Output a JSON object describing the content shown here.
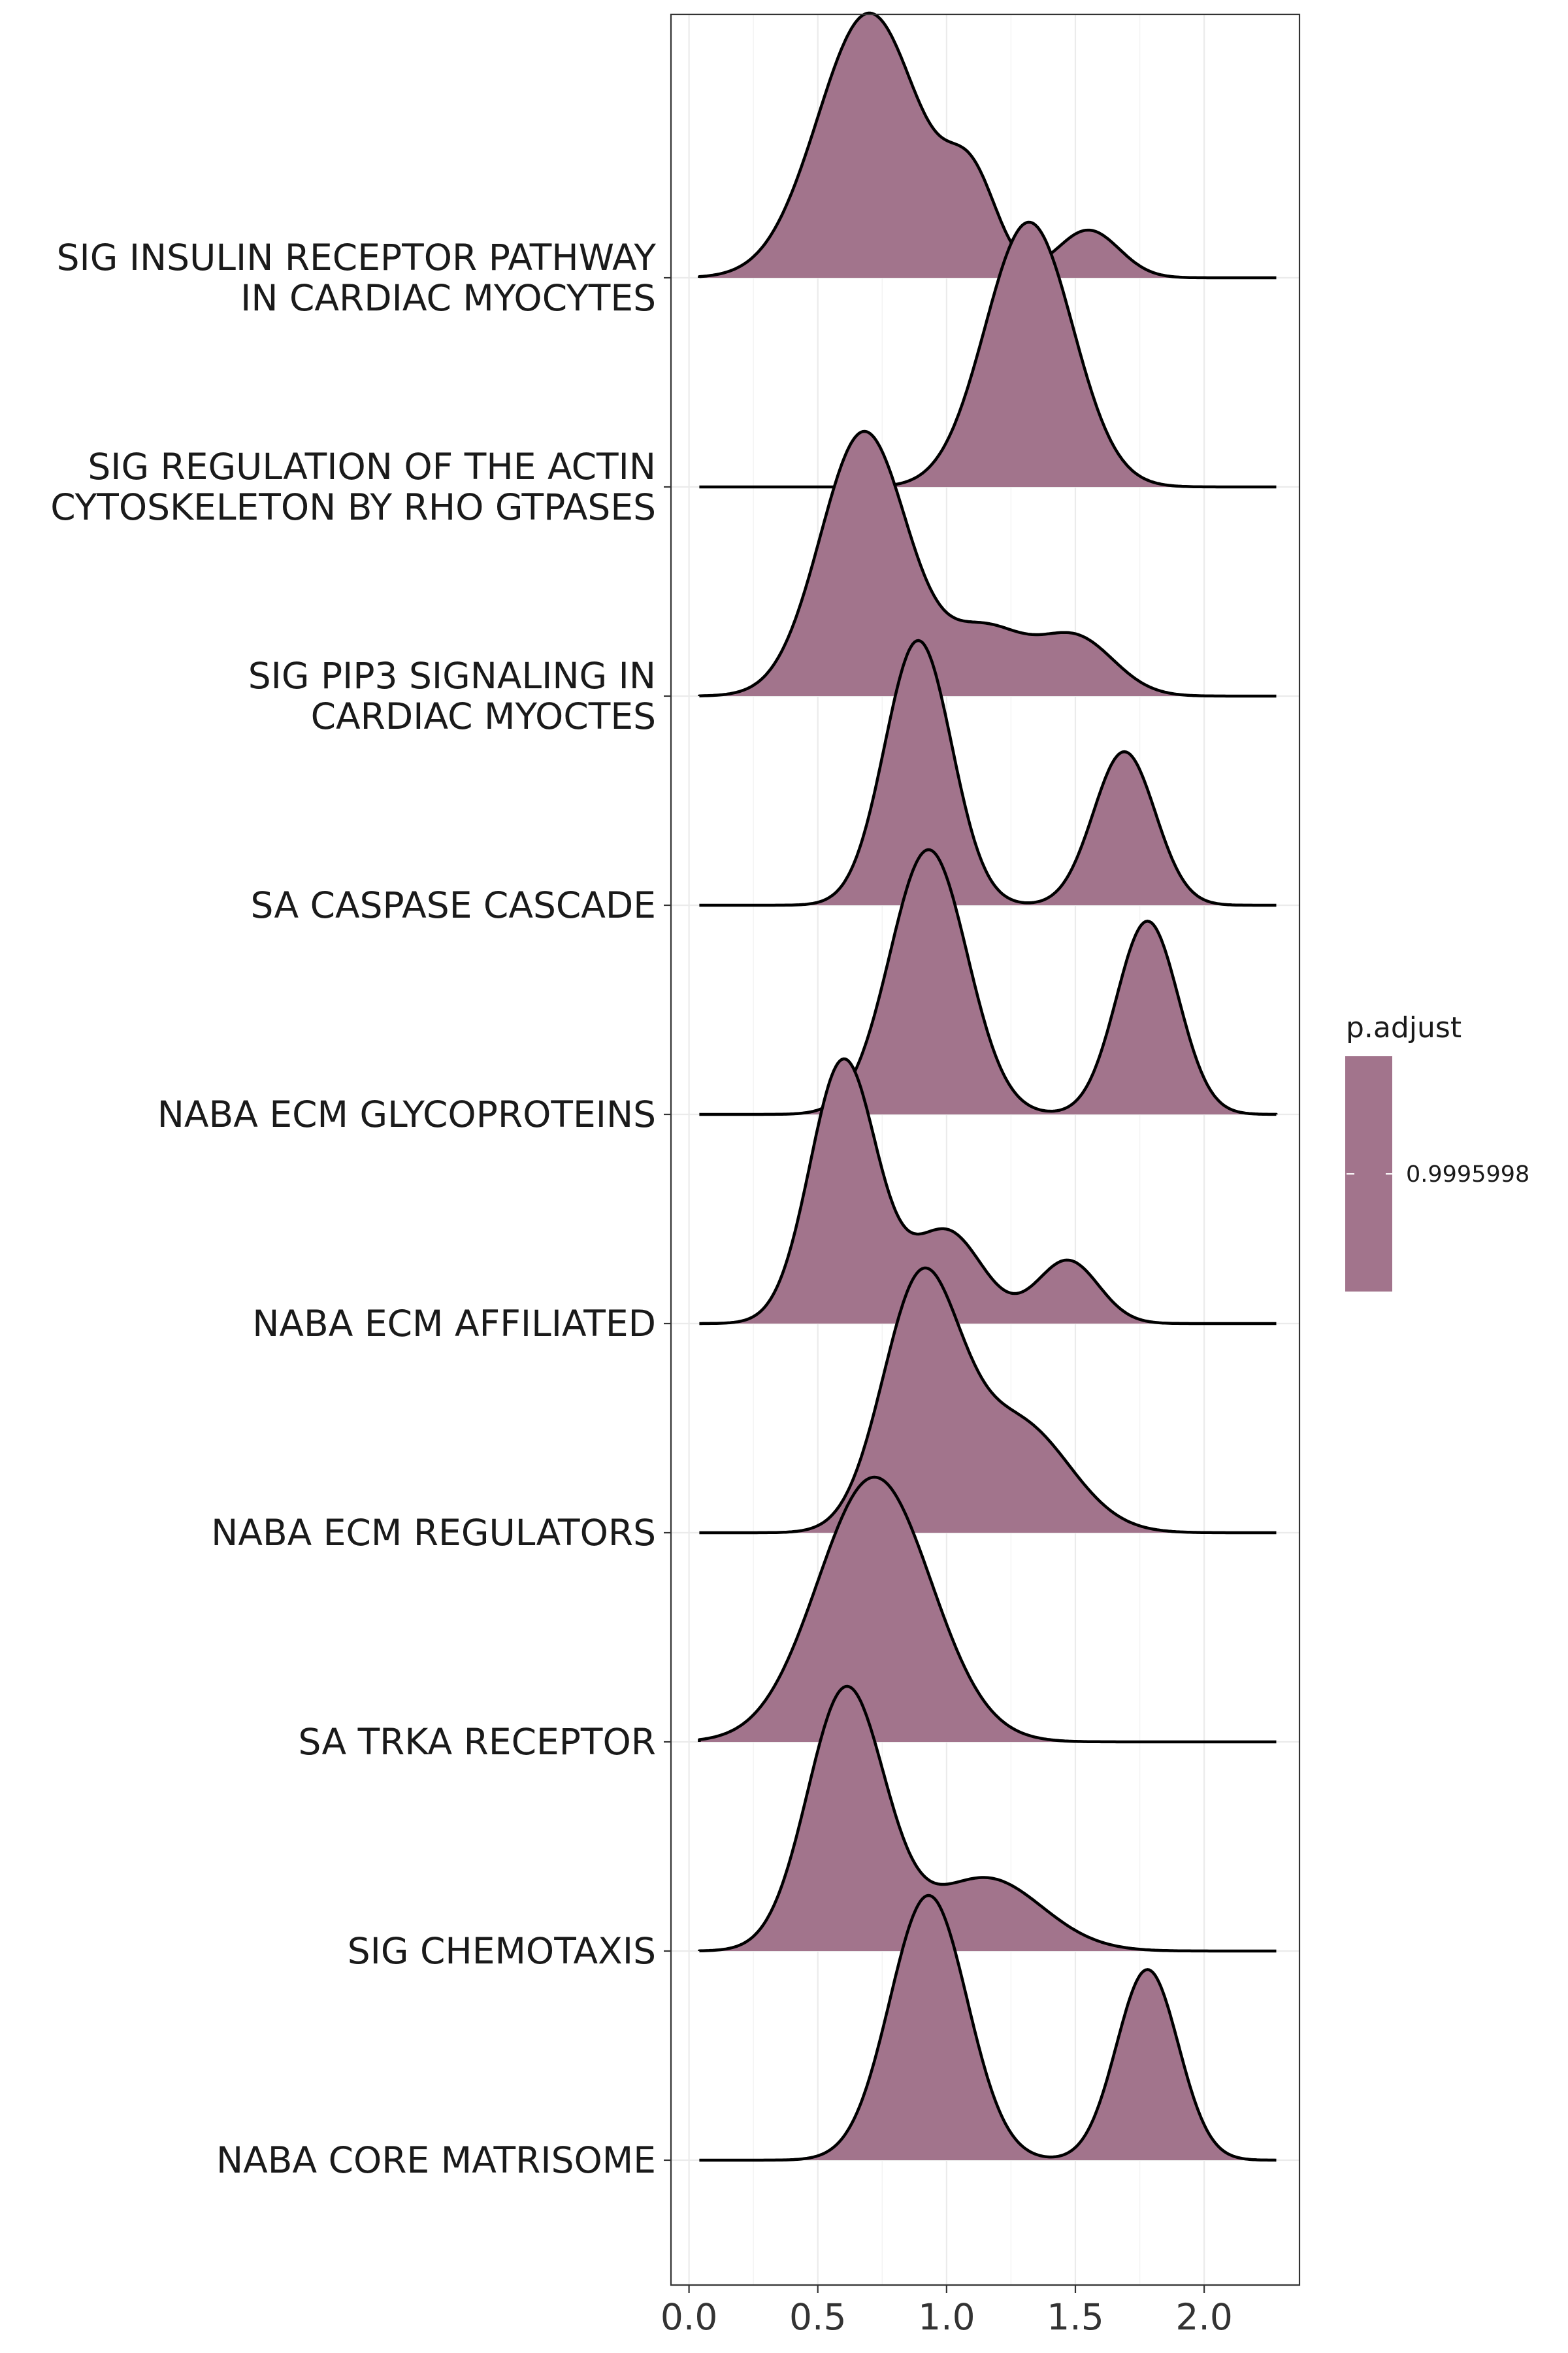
{
  "chart_data": {
    "type": "ridgeline",
    "categories": [
      "SIG INSULIN RECEPTOR PATHWAY\nIN CARDIAC MYOCYTES",
      "SIG REGULATION OF THE ACTIN\nCYTOSKELETON BY RHO GTPASES",
      "SIG PIP3 SIGNALING IN\nCARDIAC MYOCTES",
      "SA CASPASE CASCADE",
      "NABA ECM GLYCOPROTEINS",
      "NABA ECM AFFILIATED",
      "NABA ECM REGULATORS",
      "SA TRKA RECEPTOR",
      "SIG CHEMOTAXIS",
      "NABA CORE MATRISOME"
    ],
    "x_ticks": [
      "0.0",
      "0.5",
      "1.0",
      "1.5",
      "2.0"
    ],
    "xlim": [
      -0.07,
      2.37
    ],
    "x_range": [
      0.04,
      2.28
    ],
    "series": [
      {
        "category": "SIG INSULIN RECEPTOR PATHWAY\nIN CARDIAC MYOCYTES",
        "components": [
          [
            0.7,
            0.2,
            1.0
          ],
          [
            1.1,
            0.1,
            0.32
          ],
          [
            1.55,
            0.12,
            0.18
          ]
        ]
      },
      {
        "category": "SIG REGULATION OF THE ACTIN\nCYTOSKELETON BY RHO GTPASES",
        "components": [
          [
            1.32,
            0.17,
            1.0
          ]
        ]
      },
      {
        "category": "SIG PIP3 SIGNALING IN\nCARDIAC MYOCTES",
        "components": [
          [
            0.68,
            0.17,
            1.0
          ],
          [
            1.15,
            0.15,
            0.24
          ],
          [
            1.5,
            0.15,
            0.22
          ]
        ]
      },
      {
        "category": "SA CASPASE CASCADE",
        "components": [
          [
            0.89,
            0.13,
            1.0
          ],
          [
            1.69,
            0.12,
            0.58
          ]
        ]
      },
      {
        "category": "NABA ECM GLYCOPROTEINS",
        "components": [
          [
            0.93,
            0.15,
            1.0
          ],
          [
            1.78,
            0.12,
            0.73
          ]
        ]
      },
      {
        "category": "NABA ECM AFFILIATED",
        "components": [
          [
            0.6,
            0.13,
            1.0
          ],
          [
            1.0,
            0.14,
            0.35
          ],
          [
            1.47,
            0.12,
            0.24
          ]
        ]
      },
      {
        "category": "NABA ECM REGULATORS",
        "components": [
          [
            0.9,
            0.15,
            0.95
          ],
          [
            1.28,
            0.2,
            0.42
          ]
        ]
      },
      {
        "category": "SA TRKA RECEPTOR",
        "components": [
          [
            0.72,
            0.22,
            1.0
          ]
        ]
      },
      {
        "category": "SIG CHEMOTAXIS",
        "components": [
          [
            0.61,
            0.15,
            1.0
          ],
          [
            1.15,
            0.22,
            0.28
          ]
        ]
      },
      {
        "category": "NABA CORE MATRISOME",
        "components": [
          [
            0.93,
            0.15,
            1.0
          ],
          [
            1.78,
            0.12,
            0.72
          ]
        ]
      }
    ],
    "fill_color": "#A2748C",
    "grid": true,
    "legend": {
      "title": "p.adjust",
      "label": "0.9995998",
      "placement": "right"
    }
  }
}
